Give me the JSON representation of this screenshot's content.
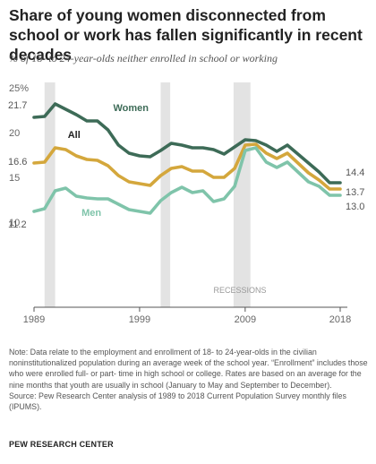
{
  "title": "Share of young women disconnected from school or work has fallen significantly in recent decades",
  "subtitle": "% of 18- to 24-year-olds neither enrolled in school or working",
  "note": "Note: Data relate to the employment and enrollment of 18- to 24-year-olds in the civilian noninstitutionalized population during an average week of the school year. “Enrollment” includes those who were enrolled full- or part- time in high school or college. Rates are based on an average for the nine months that youth are usually in school (January to May and September to December).",
  "source": "Source: Pew Research Center analysis of 1989 to 2018 Current Population Survey monthly files (IPUMS).",
  "organization": "PEW RESEARCH CENTER",
  "chart_data": {
    "type": "line",
    "xlim": [
      1989,
      2018
    ],
    "ylim": [
      10,
      25
    ],
    "x_ticks": [
      "1989",
      "1999",
      "2009",
      "2018"
    ],
    "y_ticks": [
      "25%",
      "20",
      "15",
      "10"
    ],
    "x": [
      1989,
      1990,
      1991,
      1992,
      1993,
      1994,
      1995,
      1996,
      1997,
      1998,
      1999,
      2000,
      2001,
      2002,
      2003,
      2004,
      2005,
      2006,
      2007,
      2008,
      2009,
      2010,
      2011,
      2012,
      2013,
      2014,
      2015,
      2016,
      2017,
      2018
    ],
    "series": [
      {
        "name": "Women",
        "color": "#3d6b57",
        "values": [
          21.7,
          21.8,
          23.2,
          22.6,
          22.0,
          21.3,
          21.3,
          20.3,
          18.6,
          17.7,
          17.4,
          17.3,
          18.0,
          18.8,
          18.6,
          18.3,
          18.3,
          18.1,
          17.6,
          18.4,
          19.2,
          19.1,
          18.6,
          17.9,
          18.6,
          17.6,
          16.6,
          15.6,
          14.4,
          14.4
        ],
        "first_label": "21.7",
        "last_label": "14.4"
      },
      {
        "name": "All",
        "color": "#d4a73c",
        "values": [
          16.6,
          16.7,
          18.3,
          18.1,
          17.4,
          17.0,
          16.9,
          16.3,
          15.2,
          14.5,
          14.3,
          14.1,
          15.2,
          16.0,
          16.2,
          15.7,
          15.7,
          15.0,
          15.0,
          16.0,
          18.6,
          18.7,
          17.7,
          17.1,
          17.7,
          16.6,
          15.5,
          14.7,
          13.7,
          13.7
        ],
        "first_label": "16.6",
        "last_label": "13.7"
      },
      {
        "name": "Men",
        "color": "#7fc4aa",
        "values": [
          11.2,
          11.5,
          13.5,
          13.8,
          12.9,
          12.7,
          12.6,
          12.6,
          12.0,
          11.4,
          11.2,
          11.0,
          12.4,
          13.3,
          13.9,
          13.3,
          13.5,
          12.3,
          12.6,
          14.0,
          18.0,
          18.3,
          16.7,
          16.1,
          16.7,
          15.6,
          14.5,
          14.0,
          13.0,
          13.0
        ],
        "first_label": "11.2",
        "last_label": "13.0"
      }
    ],
    "recessions": [
      [
        1990,
        1991
      ],
      [
        2001,
        2001.9
      ],
      [
        2007.9,
        2009.5
      ]
    ],
    "recession_label": "RECESSIONS",
    "grid": false,
    "legend": "inline labels"
  }
}
